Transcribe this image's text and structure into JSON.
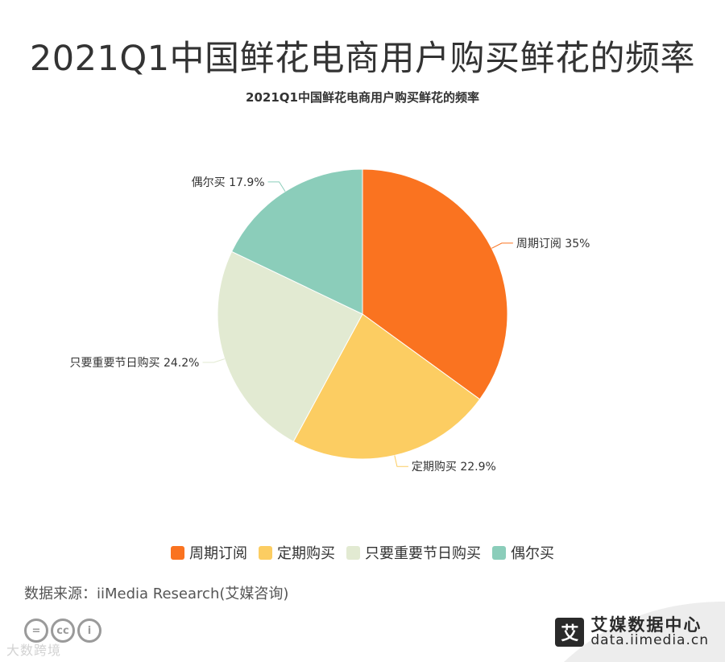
{
  "page_title": "2021Q1中国鲜花电商用户购买鲜花的频率",
  "chart_data": {
    "type": "pie",
    "title": "2021Q1中国鲜花电商用户购买鲜花的频率",
    "categories": [
      "周期订阅",
      "定期购买",
      "只要重要节日购买",
      "偶尔买"
    ],
    "values": [
      35,
      22.9,
      24.2,
      17.9
    ],
    "labels": [
      "周期订阅 35%",
      "定期购买 22.9%",
      "只要重要节日购买 24.2%",
      "偶尔买 17.9%"
    ],
    "colors": [
      "#fa7320",
      "#fccd62",
      "#e2ead2",
      "#8bcdba"
    ],
    "legend_position": "bottom"
  },
  "legend": [
    {
      "label": "周期订阅",
      "color": "#fa7320"
    },
    {
      "label": "定期购买",
      "color": "#fccd62"
    },
    {
      "label": "只要重要节日购买",
      "color": "#e2ead2"
    },
    {
      "label": "偶尔买",
      "color": "#8bcdba"
    }
  ],
  "source": "数据来源：iiMedia Research(艾媒咨询)",
  "cc_badges": [
    "=",
    "cc",
    "i"
  ],
  "watermark": "大数跨境",
  "brand": {
    "logo_char": "艾",
    "name": "艾媒数据中心",
    "url": "data.iimedia.cn"
  }
}
